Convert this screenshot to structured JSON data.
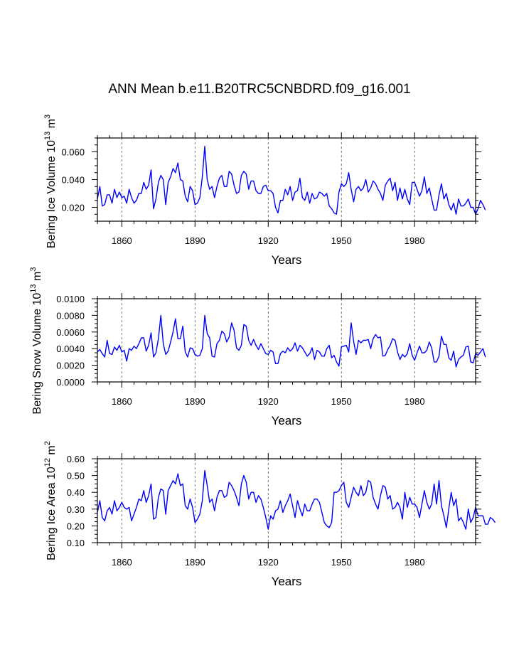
{
  "figure_title": "ANN Mean b.e11.B20TRC5CNBDRD.f09_g16.001",
  "chart_data": [
    {
      "type": "line",
      "id": "ice-volume",
      "ylabel_parts": {
        "main": "Bering Ice Volume 10",
        "exp": "13",
        "unit": " m",
        "unit_exp": "3"
      },
      "xlabel": "Years",
      "xlim": [
        1850,
        2005
      ],
      "ylim": [
        0.01,
        0.07
      ],
      "xticks": [
        1860,
        1890,
        1920,
        1950,
        1980
      ],
      "xtick_labels": [
        "1860",
        "1890",
        "1920",
        "1950",
        "1980"
      ],
      "yticks": [
        0.02,
        0.04,
        0.06
      ],
      "ytick_labels": [
        "0.020",
        "0.040",
        "0.060"
      ],
      "grid_x_dashed_at": [
        1860,
        1890,
        1920,
        1950,
        1980
      ],
      "series": [
        {
          "name": "Bering Ice Volume",
          "color": "#0000ff",
          "x_start": 1850,
          "values": [
            0.026,
            0.035,
            0.021,
            0.022,
            0.029,
            0.029,
            0.023,
            0.033,
            0.027,
            0.031,
            0.027,
            0.028,
            0.023,
            0.033,
            0.027,
            0.023,
            0.025,
            0.03,
            0.03,
            0.038,
            0.033,
            0.036,
            0.047,
            0.019,
            0.026,
            0.038,
            0.043,
            0.04,
            0.022,
            0.038,
            0.042,
            0.048,
            0.045,
            0.052,
            0.04,
            0.039,
            0.028,
            0.024,
            0.035,
            0.032,
            0.022,
            0.023,
            0.027,
            0.042,
            0.064,
            0.04,
            0.033,
            0.035,
            0.027,
            0.035,
            0.041,
            0.043,
            0.035,
            0.035,
            0.046,
            0.044,
            0.036,
            0.03,
            0.031,
            0.043,
            0.046,
            0.044,
            0.033,
            0.039,
            0.039,
            0.032,
            0.03,
            0.03,
            0.035,
            0.036,
            0.032,
            0.032,
            0.03,
            0.02,
            0.016,
            0.025,
            0.025,
            0.033,
            0.029,
            0.035,
            0.025,
            0.031,
            0.032,
            0.041,
            0.027,
            0.025,
            0.031,
            0.023,
            0.03,
            0.026,
            0.027,
            0.031,
            0.03,
            0.028,
            0.03,
            0.021,
            0.019,
            0.016,
            0.015,
            0.031,
            0.037,
            0.035,
            0.037,
            0.045,
            0.033,
            0.024,
            0.033,
            0.035,
            0.032,
            0.034,
            0.04,
            0.031,
            0.034,
            0.039,
            0.037,
            0.033,
            0.03,
            0.025,
            0.036,
            0.039,
            0.041,
            0.032,
            0.038,
            0.025,
            0.034,
            0.026,
            0.033,
            0.026,
            0.022,
            0.038,
            0.038,
            0.033,
            0.028,
            0.032,
            0.042,
            0.03,
            0.034,
            0.026,
            0.018,
            0.018,
            0.029,
            0.037,
            0.026,
            0.03,
            0.022,
            0.018,
            0.023,
            0.015,
            0.026,
            0.021,
            0.021,
            0.023,
            0.026,
            0.02,
            0.02,
            0.015,
            0.019,
            0.025,
            0.022,
            0.018
          ]
        }
      ]
    },
    {
      "type": "line",
      "id": "snow-volume",
      "ylabel_parts": {
        "main": "Bering Snow Volume 10",
        "exp": "13",
        "unit": " m",
        "unit_exp": "3"
      },
      "xlabel": "Years",
      "xlim": [
        1850,
        2005
      ],
      "ylim": [
        0.0,
        0.01
      ],
      "xticks": [
        1860,
        1890,
        1920,
        1950,
        1980
      ],
      "xtick_labels": [
        "1860",
        "1890",
        "1920",
        "1950",
        "1980"
      ],
      "yticks": [
        0.0,
        0.002,
        0.004,
        0.006,
        0.008,
        0.01
      ],
      "ytick_labels": [
        "0.0000",
        "0.0020",
        "0.0040",
        "0.0060",
        "0.0080",
        "0.0100"
      ],
      "grid_x_dashed_at": [
        1860,
        1890,
        1920,
        1950,
        1980
      ],
      "series": [
        {
          "name": "Bering Snow Volume",
          "color": "#0000ff",
          "x_start": 1850,
          "values": [
            0.0036,
            0.0039,
            0.0034,
            0.003,
            0.005,
            0.0034,
            0.0033,
            0.0042,
            0.0038,
            0.0044,
            0.0036,
            0.0038,
            0.0025,
            0.004,
            0.0038,
            0.0043,
            0.004,
            0.0046,
            0.0053,
            0.0053,
            0.0037,
            0.0044,
            0.0059,
            0.003,
            0.0035,
            0.0052,
            0.008,
            0.0046,
            0.0033,
            0.0037,
            0.0048,
            0.006,
            0.0076,
            0.0052,
            0.0052,
            0.0067,
            0.0036,
            0.003,
            0.0041,
            0.004,
            0.0033,
            0.0031,
            0.0032,
            0.004,
            0.008,
            0.0058,
            0.0053,
            0.0031,
            0.003,
            0.0046,
            0.005,
            0.0061,
            0.0058,
            0.0048,
            0.0054,
            0.0071,
            0.0062,
            0.0041,
            0.0038,
            0.0044,
            0.0069,
            0.0067,
            0.005,
            0.0044,
            0.0051,
            0.0044,
            0.0039,
            0.0046,
            0.004,
            0.0034,
            0.0033,
            0.0038,
            0.0036,
            0.0022,
            0.0022,
            0.0034,
            0.0037,
            0.0035,
            0.0041,
            0.0037,
            0.004,
            0.0047,
            0.0037,
            0.0044,
            0.0041,
            0.0036,
            0.0031,
            0.0034,
            0.0041,
            0.0027,
            0.0038,
            0.0036,
            0.0031,
            0.0031,
            0.004,
            0.0044,
            0.0029,
            0.0032,
            0.0024,
            0.0019,
            0.0042,
            0.0043,
            0.0044,
            0.0036,
            0.0071,
            0.0049,
            0.0033,
            0.005,
            0.0047,
            0.005,
            0.005,
            0.0051,
            0.004,
            0.0052,
            0.0057,
            0.0053,
            0.0054,
            0.0031,
            0.0032,
            0.0039,
            0.0044,
            0.0052,
            0.005,
            0.0036,
            0.0027,
            0.0033,
            0.003,
            0.0034,
            0.0046,
            0.0032,
            0.0026,
            0.0035,
            0.0043,
            0.0035,
            0.0035,
            0.0038,
            0.0048,
            0.0041,
            0.0024,
            0.0024,
            0.0031,
            0.0055,
            0.0045,
            0.0045,
            0.0029,
            0.0026,
            0.0037,
            0.0018,
            0.0027,
            0.003,
            0.0032,
            0.0042,
            0.0043,
            0.0024,
            0.0023,
            0.0034,
            0.0032,
            0.0036,
            0.004,
            0.003
          ]
        }
      ]
    },
    {
      "type": "line",
      "id": "ice-area",
      "ylabel_parts": {
        "main": "Bering Ice Area 10",
        "exp": "12",
        "unit": " m",
        "unit_exp": "2"
      },
      "xlabel": "Years",
      "xlim": [
        1850,
        2005
      ],
      "ylim": [
        0.1,
        0.6
      ],
      "xticks": [
        1860,
        1890,
        1920,
        1950,
        1980
      ],
      "xtick_labels": [
        "1860",
        "1890",
        "1920",
        "1950",
        "1980"
      ],
      "yticks": [
        0.1,
        0.2,
        0.3,
        0.4,
        0.5,
        0.6
      ],
      "ytick_labels": [
        "0.10",
        "0.20",
        "0.30",
        "0.40",
        "0.50",
        "0.60"
      ],
      "grid_x_dashed_at": [
        1860,
        1890,
        1920,
        1950,
        1980
      ],
      "series": [
        {
          "name": "Bering Ice Area",
          "color": "#0000ff",
          "x_start": 1850,
          "values": [
            0.28,
            0.35,
            0.25,
            0.23,
            0.29,
            0.31,
            0.27,
            0.35,
            0.29,
            0.31,
            0.34,
            0.31,
            0.3,
            0.31,
            0.23,
            0.27,
            0.31,
            0.36,
            0.35,
            0.41,
            0.34,
            0.38,
            0.45,
            0.24,
            0.25,
            0.37,
            0.42,
            0.41,
            0.27,
            0.41,
            0.44,
            0.47,
            0.45,
            0.51,
            0.44,
            0.45,
            0.32,
            0.3,
            0.36,
            0.31,
            0.22,
            0.24,
            0.27,
            0.35,
            0.53,
            0.44,
            0.34,
            0.36,
            0.29,
            0.37,
            0.41,
            0.41,
            0.37,
            0.38,
            0.46,
            0.44,
            0.41,
            0.37,
            0.32,
            0.45,
            0.5,
            0.46,
            0.36,
            0.4,
            0.4,
            0.34,
            0.38,
            0.36,
            0.31,
            0.25,
            0.18,
            0.26,
            0.24,
            0.29,
            0.3,
            0.35,
            0.28,
            0.32,
            0.35,
            0.39,
            0.32,
            0.25,
            0.35,
            0.3,
            0.26,
            0.33,
            0.29,
            0.29,
            0.33,
            0.36,
            0.36,
            0.34,
            0.28,
            0.22,
            0.2,
            0.19,
            0.22,
            0.4,
            0.4,
            0.41,
            0.44,
            0.46,
            0.34,
            0.31,
            0.37,
            0.43,
            0.4,
            0.38,
            0.44,
            0.38,
            0.4,
            0.47,
            0.46,
            0.37,
            0.33,
            0.3,
            0.38,
            0.44,
            0.43,
            0.36,
            0.38,
            0.3,
            0.31,
            0.34,
            0.31,
            0.24,
            0.4,
            0.31,
            0.37,
            0.33,
            0.33,
            0.31,
            0.25,
            0.33,
            0.41,
            0.34,
            0.3,
            0.33,
            0.45,
            0.33,
            0.47,
            0.32,
            0.26,
            0.19,
            0.3,
            0.4,
            0.32,
            0.36,
            0.23,
            0.25,
            0.22,
            0.18,
            0.3,
            0.22,
            0.25,
            0.31,
            0.26,
            0.26,
            0.26,
            0.21,
            0.21,
            0.25,
            0.24,
            0.22
          ]
        }
      ]
    }
  ]
}
